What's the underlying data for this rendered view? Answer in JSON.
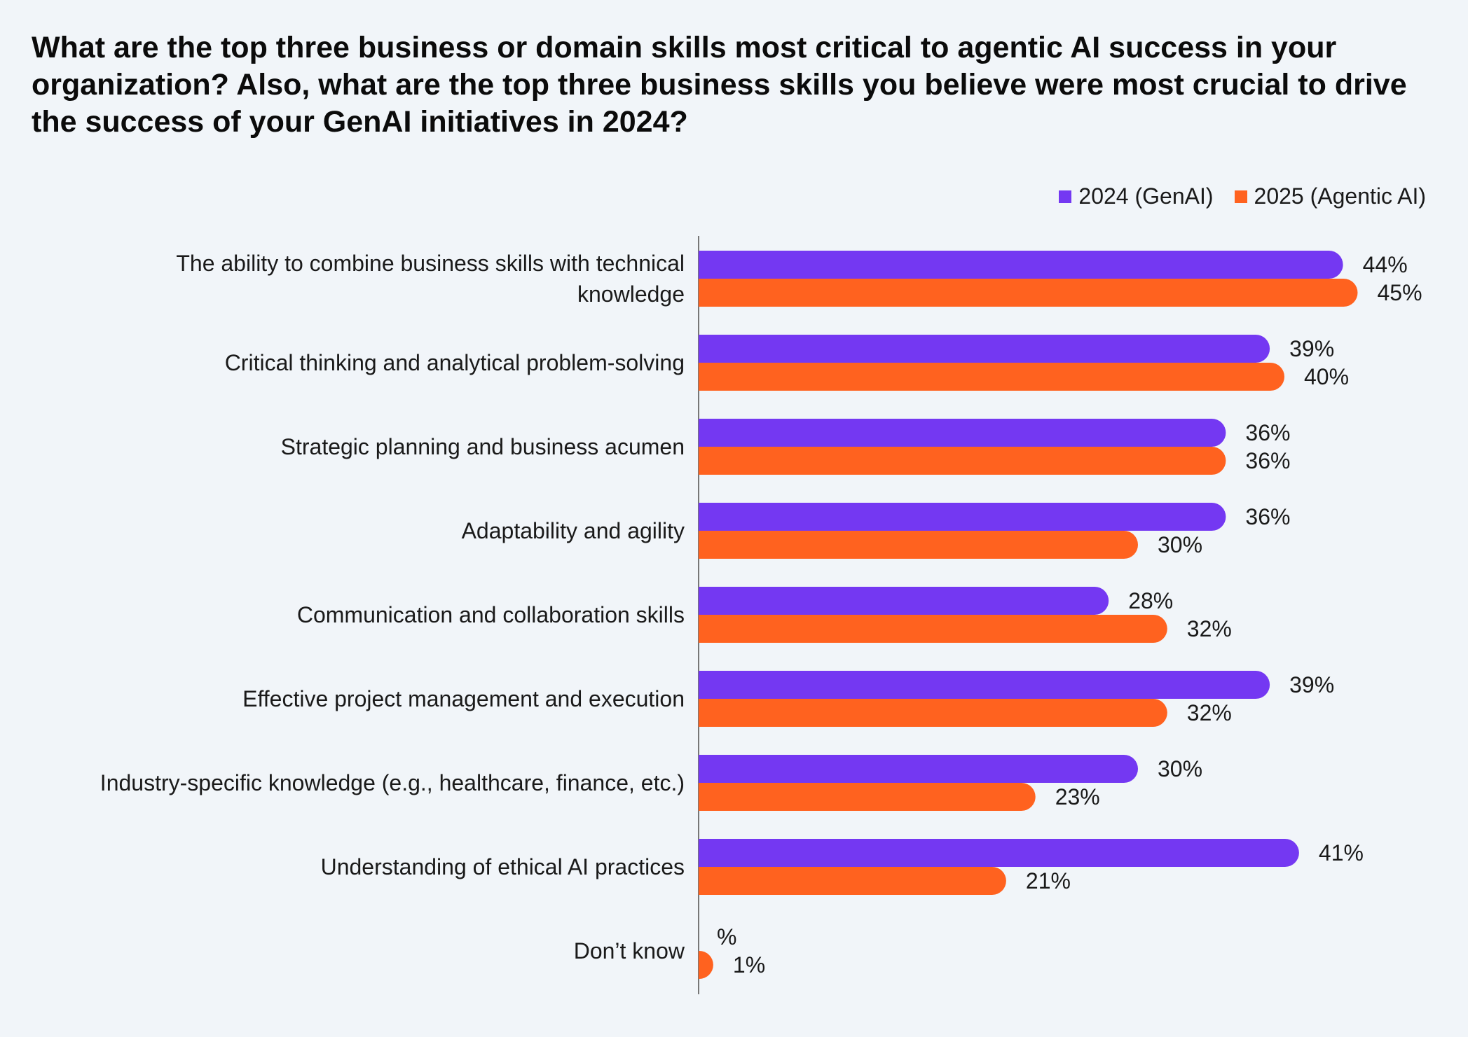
{
  "colors": {
    "series_2024": "#7438f2",
    "series_2025": "#ff621f",
    "axis": "#777777",
    "background": "#f1f5f9"
  },
  "chart_data": {
    "type": "bar",
    "orientation": "horizontal",
    "title": "What are the top three business or domain skills most critical to agentic AI success in your organization? Also, what are the top three business skills you believe were most crucial to drive the success of your GenAI initiatives in 2024?",
    "xlabel": "",
    "ylabel": "",
    "xlim": [
      0,
      50
    ],
    "grid": false,
    "legend_position": "top-right",
    "categories": [
      [
        "The ability to combine business skills with technical",
        "knowledge"
      ],
      [
        "Critical thinking and analytical problem-solving"
      ],
      [
        "Strategic planning and business acumen"
      ],
      [
        "Adaptability and agility"
      ],
      [
        "Communication and collaboration skills"
      ],
      [
        "Effective project management  and execution"
      ],
      [
        "Industry-specific knowledge (e.g., healthcare, finance, etc.)"
      ],
      [
        "Understanding of ethical AI practices"
      ],
      [
        "Don’t know"
      ]
    ],
    "series": [
      {
        "name": "2024 (GenAI)",
        "color": "#7438f2",
        "values": [
          44,
          39,
          36,
          36,
          28,
          39,
          30,
          41,
          null
        ],
        "labels": [
          "44%",
          "39%",
          "36%",
          "36%",
          "28%",
          "39%",
          "30%",
          "41%",
          "%"
        ]
      },
      {
        "name": "2025 (Agentic AI)",
        "color": "#ff621f",
        "values": [
          45,
          40,
          36,
          30,
          32,
          32,
          23,
          21,
          1
        ],
        "labels": [
          "45%",
          "40%",
          "36%",
          "30%",
          "32%",
          "32%",
          "23%",
          "21%",
          "1%"
        ]
      }
    ]
  }
}
